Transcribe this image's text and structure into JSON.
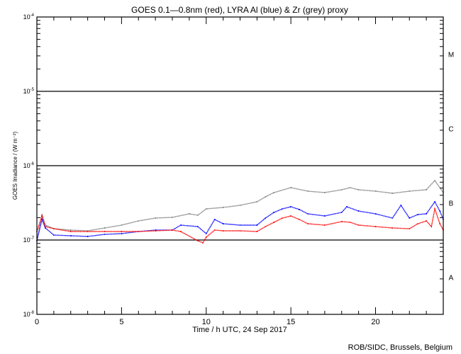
{
  "chart_data": {
    "type": "scatter",
    "title": "GOES 0.1—0.8nm (red), LYRA Al (blue) & Zr (grey) proxy",
    "xlabel": "Time / h UTC, 24 Sep 2017",
    "ylabel": "GOES Irradiance / (W m⁻²)",
    "y_scale": "log",
    "xlim": [
      0,
      24
    ],
    "ylim_log10": [
      -8,
      -4
    ],
    "x_ticks": [
      "0",
      "5",
      "10",
      "15",
      "20"
    ],
    "x_tick_values": [
      0,
      5,
      10,
      15,
      20
    ],
    "y_ticks": [
      {
        "base": "10",
        "exp": "-4",
        "log": -4
      },
      {
        "base": "10",
        "exp": "-5",
        "log": -5
      },
      {
        "base": "10",
        "exp": "-6",
        "log": -6
      },
      {
        "base": "10",
        "exp": "-7",
        "log": -7
      },
      {
        "base": "10",
        "exp": "-8",
        "log": -8
      }
    ],
    "flare_classes": [
      {
        "label": "M",
        "log": -4.5
      },
      {
        "label": "C",
        "log": -5.5
      },
      {
        "label": "B",
        "log": -6.5
      },
      {
        "label": "A",
        "log": -7.5
      }
    ],
    "class_lines_log10": [
      -5,
      -6,
      -7
    ],
    "series": [
      {
        "name": "LYRA Zr proxy",
        "color": "#808080",
        "x": [
          0,
          0.3,
          0.5,
          1,
          2,
          3,
          4,
          5,
          6,
          7,
          8,
          9,
          9.5,
          10,
          11,
          12,
          13,
          13.5,
          14,
          15,
          16,
          17,
          18,
          18.5,
          19,
          20,
          21,
          22,
          23,
          23.5,
          24
        ],
        "log10_y": [
          -7.01,
          -6.657,
          -6.8,
          -6.848,
          -6.867,
          -6.876,
          -6.838,
          -6.8,
          -6.743,
          -6.705,
          -6.695,
          -6.648,
          -6.667,
          -6.581,
          -6.562,
          -6.533,
          -6.486,
          -6.419,
          -6.362,
          -6.295,
          -6.343,
          -6.362,
          -6.324,
          -6.295,
          -6.324,
          -6.343,
          -6.371,
          -6.343,
          -6.324,
          -6.2,
          -6.362
        ]
      },
      {
        "name": "LYRA Al proxy",
        "color": "#0000ff",
        "x": [
          0,
          0.3,
          0.5,
          1,
          2,
          3,
          4,
          5,
          6,
          7,
          8,
          8.5,
          9.5,
          10,
          10.5,
          11,
          12,
          13,
          13.5,
          14,
          14.5,
          15,
          15.5,
          16,
          17,
          18,
          18.3,
          19,
          20,
          21,
          21.5,
          22,
          22.5,
          23,
          23.5,
          23.8,
          24
        ],
        "log10_y": [
          -7.01,
          -6.724,
          -6.838,
          -6.933,
          -6.943,
          -6.952,
          -6.924,
          -6.914,
          -6.886,
          -6.867,
          -6.867,
          -6.8,
          -6.819,
          -6.914,
          -6.724,
          -6.781,
          -6.8,
          -6.8,
          -6.705,
          -6.629,
          -6.581,
          -6.552,
          -6.59,
          -6.648,
          -6.676,
          -6.629,
          -6.552,
          -6.61,
          -6.648,
          -6.705,
          -6.533,
          -6.705,
          -6.657,
          -6.648,
          -6.486,
          -6.61,
          -6.724
        ]
      },
      {
        "name": "GOES 0.1-0.8nm",
        "color": "#ff0000",
        "x": [
          0,
          0.3,
          0.5,
          1,
          2,
          3,
          4,
          5,
          6,
          7,
          8,
          8.5,
          9.5,
          9.8,
          10,
          10.5,
          11,
          12,
          13,
          13.5,
          14,
          14.5,
          15,
          15.5,
          16,
          17,
          18,
          18.5,
          19,
          20,
          21,
          22,
          22.5,
          23,
          23.3,
          23.5,
          23.8,
          24
        ],
        "log10_y": [
          -6.886,
          -6.676,
          -6.819,
          -6.848,
          -6.886,
          -6.886,
          -6.886,
          -6.886,
          -6.886,
          -6.876,
          -6.867,
          -6.886,
          -7.01,
          -7.038,
          -6.962,
          -6.867,
          -6.876,
          -6.876,
          -6.886,
          -6.819,
          -6.762,
          -6.705,
          -6.676,
          -6.724,
          -6.781,
          -6.8,
          -6.752,
          -6.762,
          -6.8,
          -6.819,
          -6.838,
          -6.848,
          -6.781,
          -6.743,
          -6.819,
          -6.581,
          -6.781,
          -6.867
        ]
      }
    ]
  },
  "footer": "ROB/SIDC, Brussels, Belgium"
}
